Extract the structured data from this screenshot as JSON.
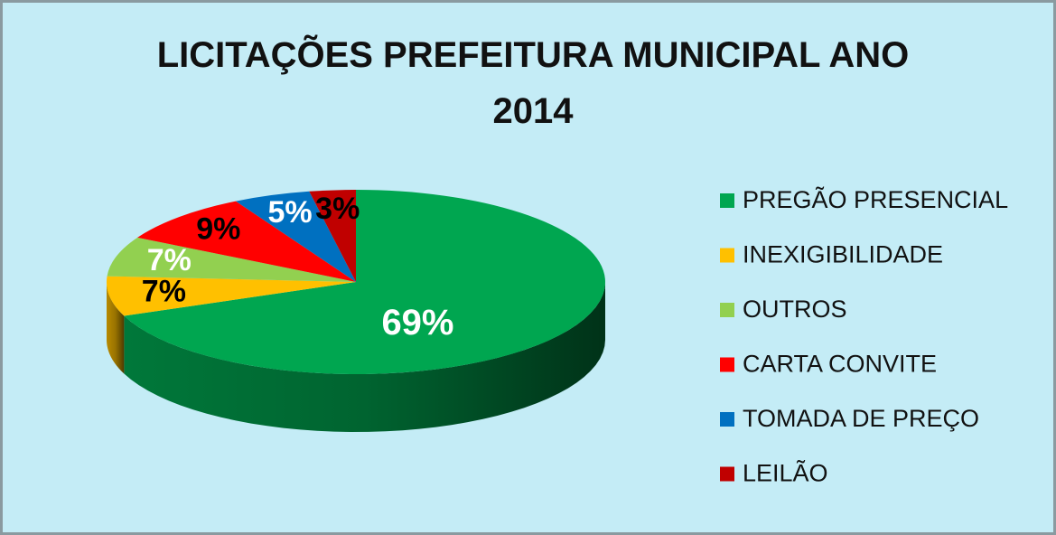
{
  "chart_data": {
    "type": "pie3d",
    "title": "LICITAÇÕES PREFEITURA MUNICIPAL  ANO 2014",
    "categories": [
      "PREGÃO PRESENCIAL",
      "INEXIGIBILIDADE",
      "OUTROS",
      "CARTA CONVITE",
      "TOMADA DE PREÇO",
      "LEILÃO"
    ],
    "values": [
      69,
      7,
      7,
      9,
      5,
      3
    ],
    "value_labels": [
      "69%",
      "7%",
      "7%",
      "9%",
      "5%",
      "3%"
    ],
    "colors": [
      "#00a650",
      "#ffc000",
      "#92d050",
      "#ff0000",
      "#0070c0",
      "#c00000"
    ],
    "label_colors": [
      "#ffffff",
      "#000000",
      "#ffffff",
      "#000000",
      "#ffffff",
      "#000000"
    ],
    "legend": "right"
  }
}
